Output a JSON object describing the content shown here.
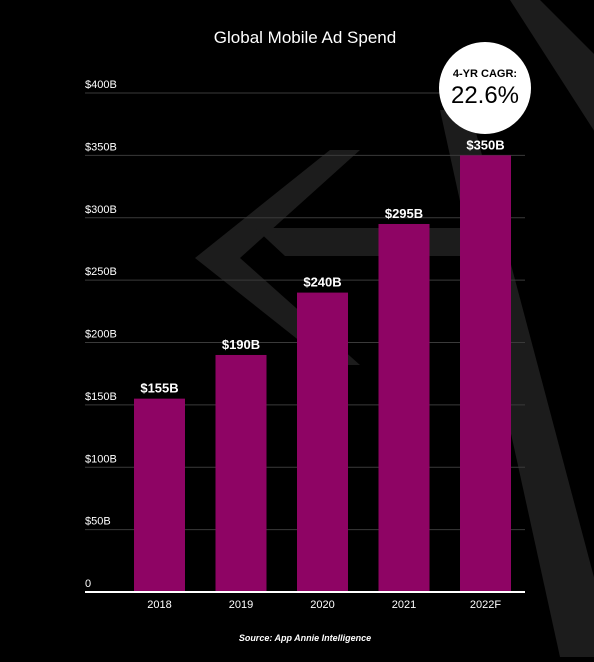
{
  "colors": {
    "background": "#000000",
    "bar": "#8e0464",
    "text": "#ffffff",
    "grid": "#3a3a3a",
    "axis": "#ffffff",
    "decoration": "#1c1c1c",
    "badge_bg": "#ffffff",
    "badge_text": "#000000"
  },
  "badge": {
    "label": "4-YR CAGR:",
    "value": "22.6%"
  },
  "source": "Source: App Annie Intelligence",
  "chart_data": {
    "type": "bar",
    "title": "Global Mobile Ad Spend",
    "xlabel": "",
    "ylabel": "",
    "categories": [
      "2018",
      "2019",
      "2020",
      "2021",
      "2022F"
    ],
    "values": [
      155,
      190,
      240,
      295,
      350
    ],
    "data_labels": [
      "$155B",
      "$190B",
      "$240B",
      "$295B",
      "$350B"
    ],
    "y_ticks": [
      0,
      50,
      100,
      150,
      200,
      250,
      300,
      350,
      400
    ],
    "y_tick_labels": [
      "0",
      "$50B",
      "$100B",
      "$150B",
      "$200B",
      "$250B",
      "$300B",
      "$350B",
      "$400B"
    ],
    "ylim": [
      0,
      400
    ],
    "grid": true,
    "legend": "none"
  }
}
